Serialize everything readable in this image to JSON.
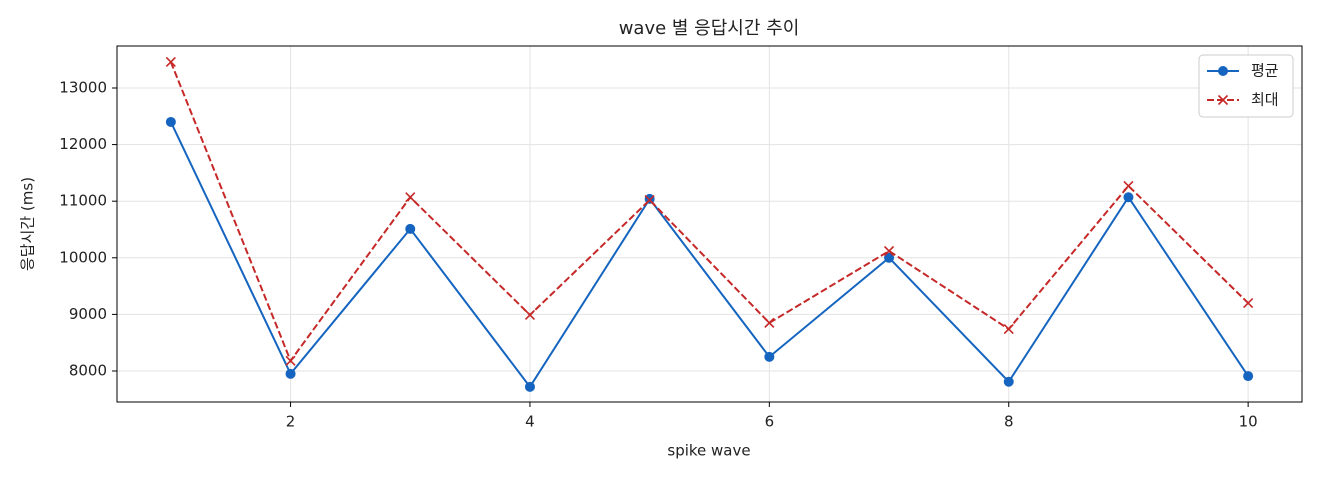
{
  "chart_data": {
    "type": "line",
    "title": "wave 별 응답시간 추이",
    "x_label": "spike wave",
    "y_label": "응답시간 (ms)",
    "x": [
      1,
      2,
      3,
      4,
      5,
      6,
      7,
      8,
      9,
      10
    ],
    "series": [
      {
        "name": "평균",
        "color": "#1565c0",
        "marker": "circle",
        "dash": "solid",
        "values": [
          12400,
          7950,
          10510,
          7720,
          11040,
          8250,
          10000,
          7810,
          11070,
          7910
        ]
      },
      {
        "name": "최대",
        "color": "#c62828",
        "marker": "x",
        "dash": "dashed",
        "values": [
          13460,
          8180,
          11070,
          8990,
          11020,
          8850,
          10120,
          8740,
          11270,
          9200
        ]
      }
    ],
    "xlim": [
      0.55,
      10.45
    ],
    "xticks": [
      2,
      4,
      6,
      8,
      10
    ],
    "ylim": [
      7452,
      13742
    ],
    "yticks": [
      8000,
      9000,
      10000,
      11000,
      12000,
      13000
    ],
    "grid": true,
    "legend": "upper right"
  }
}
